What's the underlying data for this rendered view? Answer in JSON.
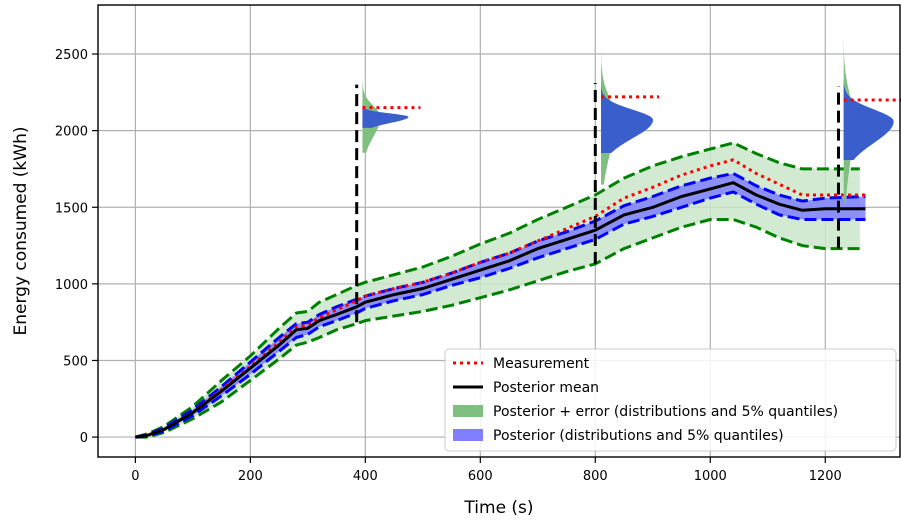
{
  "chart_data": {
    "type": "line",
    "title": "",
    "xlabel": "Time (s)",
    "ylabel": "Energy consumed (kWh)",
    "xlim": [
      -65,
      1330
    ],
    "ylim": [
      -130,
      2820
    ],
    "xticks": [
      0,
      200,
      400,
      600,
      800,
      1000,
      1200
    ],
    "yticks": [
      0,
      500,
      1000,
      1500,
      2000,
      2500
    ],
    "grid": true,
    "legend_position": "lower-right",
    "colors": {
      "measurement": "#ff0000",
      "posterior_mean": "#000000",
      "posterior_error": "#008000",
      "posterior_error_fill": "#c9e6c9",
      "posterior": "#0000ff",
      "posterior_fill": "#7f7fff",
      "distribution_blue": "#3a5fcd",
      "distribution_green": "#7fbf7f"
    },
    "legend": [
      {
        "key": "measurement",
        "label": "Measurement",
        "style": "dotted"
      },
      {
        "key": "posterior_mean",
        "label": "Posterior mean",
        "style": "solid"
      },
      {
        "key": "posterior_error",
        "label": "Posterior + error (distributions and 5% quantiles)",
        "style": "patch"
      },
      {
        "key": "posterior",
        "label": "Posterior (distributions and 5% quantiles)",
        "style": "patch"
      }
    ],
    "series": [
      {
        "key": "posterior_mean",
        "style": "solid",
        "x": [
          0,
          20,
          50,
          100,
          150,
          200,
          250,
          280,
          300,
          320,
          350,
          385,
          400,
          450,
          500,
          550,
          600,
          650,
          700,
          750,
          800,
          850,
          900,
          950,
          1000,
          1040,
          1080,
          1120,
          1160,
          1200,
          1270
        ],
        "y": [
          0,
          10,
          50,
          160,
          300,
          450,
          600,
          700,
          710,
          760,
          800,
          850,
          880,
          930,
          970,
          1030,
          1090,
          1150,
          1230,
          1290,
          1350,
          1450,
          1500,
          1570,
          1620,
          1660,
          1580,
          1520,
          1480,
          1490,
          1490
        ]
      },
      {
        "key": "measurement",
        "style": "dotted",
        "x": [
          0,
          20,
          50,
          100,
          150,
          200,
          250,
          280,
          300,
          320,
          350,
          385,
          400,
          450,
          500,
          550,
          600,
          650,
          700,
          750,
          800,
          850,
          900,
          950,
          1000,
          1040,
          1080,
          1120,
          1160,
          1200,
          1270
        ],
        "y": [
          0,
          10,
          50,
          160,
          310,
          460,
          620,
          720,
          730,
          780,
          830,
          890,
          920,
          970,
          1010,
          1070,
          1140,
          1200,
          1280,
          1360,
          1440,
          1560,
          1630,
          1710,
          1770,
          1810,
          1720,
          1650,
          1580,
          1580,
          1580
        ]
      },
      {
        "key": "posterior_upper",
        "style": "dashed",
        "color_key": "posterior",
        "x": [
          0,
          20,
          50,
          100,
          150,
          200,
          250,
          280,
          300,
          320,
          350,
          385,
          400,
          450,
          500,
          550,
          600,
          650,
          700,
          750,
          800,
          850,
          900,
          950,
          1000,
          1040,
          1080,
          1120,
          1160,
          1200,
          1270
        ],
        "y": [
          0,
          15,
          60,
          180,
          330,
          490,
          650,
          740,
          750,
          800,
          850,
          900,
          920,
          970,
          1010,
          1070,
          1140,
          1200,
          1280,
          1340,
          1410,
          1510,
          1570,
          1640,
          1690,
          1720,
          1640,
          1580,
          1540,
          1560,
          1570
        ]
      },
      {
        "key": "posterior_lower",
        "style": "dashed",
        "color_key": "posterior",
        "x": [
          0,
          20,
          50,
          100,
          150,
          200,
          250,
          280,
          300,
          320,
          350,
          385,
          400,
          450,
          500,
          550,
          600,
          650,
          700,
          750,
          800,
          850,
          900,
          950,
          1000,
          1040,
          1080,
          1120,
          1160,
          1200,
          1270
        ],
        "y": [
          0,
          5,
          40,
          140,
          270,
          410,
          560,
          650,
          670,
          720,
          760,
          810,
          840,
          890,
          930,
          990,
          1040,
          1100,
          1170,
          1230,
          1290,
          1390,
          1440,
          1500,
          1560,
          1600,
          1520,
          1450,
          1420,
          1420,
          1420
        ]
      },
      {
        "key": "error_upper",
        "style": "dashed",
        "color_key": "posterior_error",
        "x": [
          0,
          20,
          50,
          100,
          150,
          200,
          250,
          280,
          300,
          320,
          350,
          385,
          400,
          450,
          500,
          550,
          600,
          650,
          700,
          750,
          800,
          850,
          900,
          950,
          1000,
          1040,
          1080,
          1120,
          1160,
          1200,
          1260
        ],
        "y": [
          0,
          20,
          70,
          200,
          370,
          530,
          710,
          810,
          820,
          880,
          930,
          990,
          1010,
          1060,
          1110,
          1180,
          1260,
          1330,
          1420,
          1500,
          1580,
          1690,
          1770,
          1830,
          1880,
          1920,
          1850,
          1790,
          1750,
          1750,
          1750
        ]
      },
      {
        "key": "error_lower",
        "style": "dashed",
        "color_key": "posterior_error",
        "x": [
          0,
          20,
          50,
          100,
          150,
          200,
          250,
          280,
          300,
          320,
          350,
          385,
          400,
          450,
          500,
          550,
          600,
          650,
          700,
          750,
          800,
          850,
          900,
          950,
          1000,
          1040,
          1080,
          1120,
          1160,
          1200,
          1260
        ],
        "y": [
          0,
          0,
          30,
          120,
          230,
          370,
          510,
          600,
          620,
          650,
          700,
          740,
          760,
          790,
          820,
          860,
          910,
          960,
          1020,
          1080,
          1130,
          1230,
          1300,
          1370,
          1420,
          1420,
          1370,
          1300,
          1250,
          1230,
          1230
        ]
      }
    ],
    "vlines": [
      {
        "x": 385,
        "y0": 750,
        "y1": 2300
      },
      {
        "x": 800,
        "y0": 1130,
        "y1": 2310
      },
      {
        "x": 1223,
        "y0": 1230,
        "y1": 2290
      }
    ],
    "distributions": [
      {
        "x": 395,
        "error": {
          "center": 2090,
          "spread": 260,
          "peak_width": 18
        },
        "posterior": {
          "center": 2090,
          "spread": 80,
          "peak_width": 46
        },
        "measurement": 2150
      },
      {
        "x": 810,
        "error": {
          "center": 2080,
          "spread": 480,
          "peak_width": 14
        },
        "posterior": {
          "center": 2070,
          "spread": 240,
          "peak_width": 52
        },
        "measurement": 2220
      },
      {
        "x": 1232,
        "error": {
          "center": 2070,
          "spread": 600,
          "peak_width": 10
        },
        "posterior": {
          "center": 2060,
          "spread": 280,
          "peak_width": 50
        },
        "measurement": 2200
      }
    ]
  }
}
